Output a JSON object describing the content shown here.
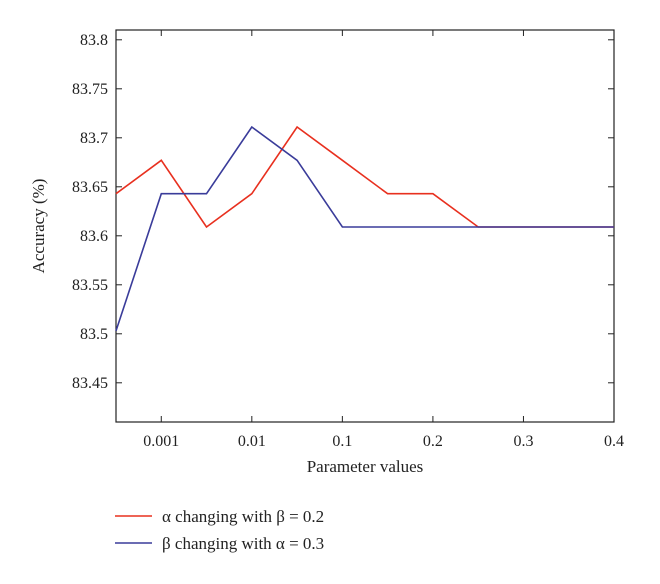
{
  "chart_data": {
    "type": "line",
    "title": "",
    "xlabel": "Parameter values",
    "ylabel": "Accuracy (%)",
    "x_tick_labels": [
      "0.001",
      "0.01",
      "0.1",
      "0.2",
      "0.3",
      "0.4"
    ],
    "y_ticks": [
      "83.45",
      "83.5",
      "83.55",
      "83.6",
      "83.65",
      "83.7",
      "83.75",
      "83.8"
    ],
    "ylim": [
      83.41,
      83.81
    ],
    "grid": false,
    "legend_position": "bottom-left",
    "x_positions": [
      0,
      1,
      2,
      3,
      4,
      5,
      6,
      7,
      8,
      9,
      10,
      11
    ],
    "series": [
      {
        "name": "α changing with β = 0.2",
        "color": "#e8301f",
        "values": [
          83.643,
          83.677,
          83.609,
          83.643,
          83.711,
          83.677,
          83.643,
          83.643,
          83.609,
          83.609,
          83.609,
          83.609
        ]
      },
      {
        "name": "β changing with α = 0.3",
        "color": "#3a3c9a",
        "values": [
          83.503,
          83.643,
          83.643,
          83.711,
          83.677,
          83.609,
          83.609,
          83.609,
          83.609,
          83.609,
          83.609,
          83.609
        ]
      }
    ]
  }
}
